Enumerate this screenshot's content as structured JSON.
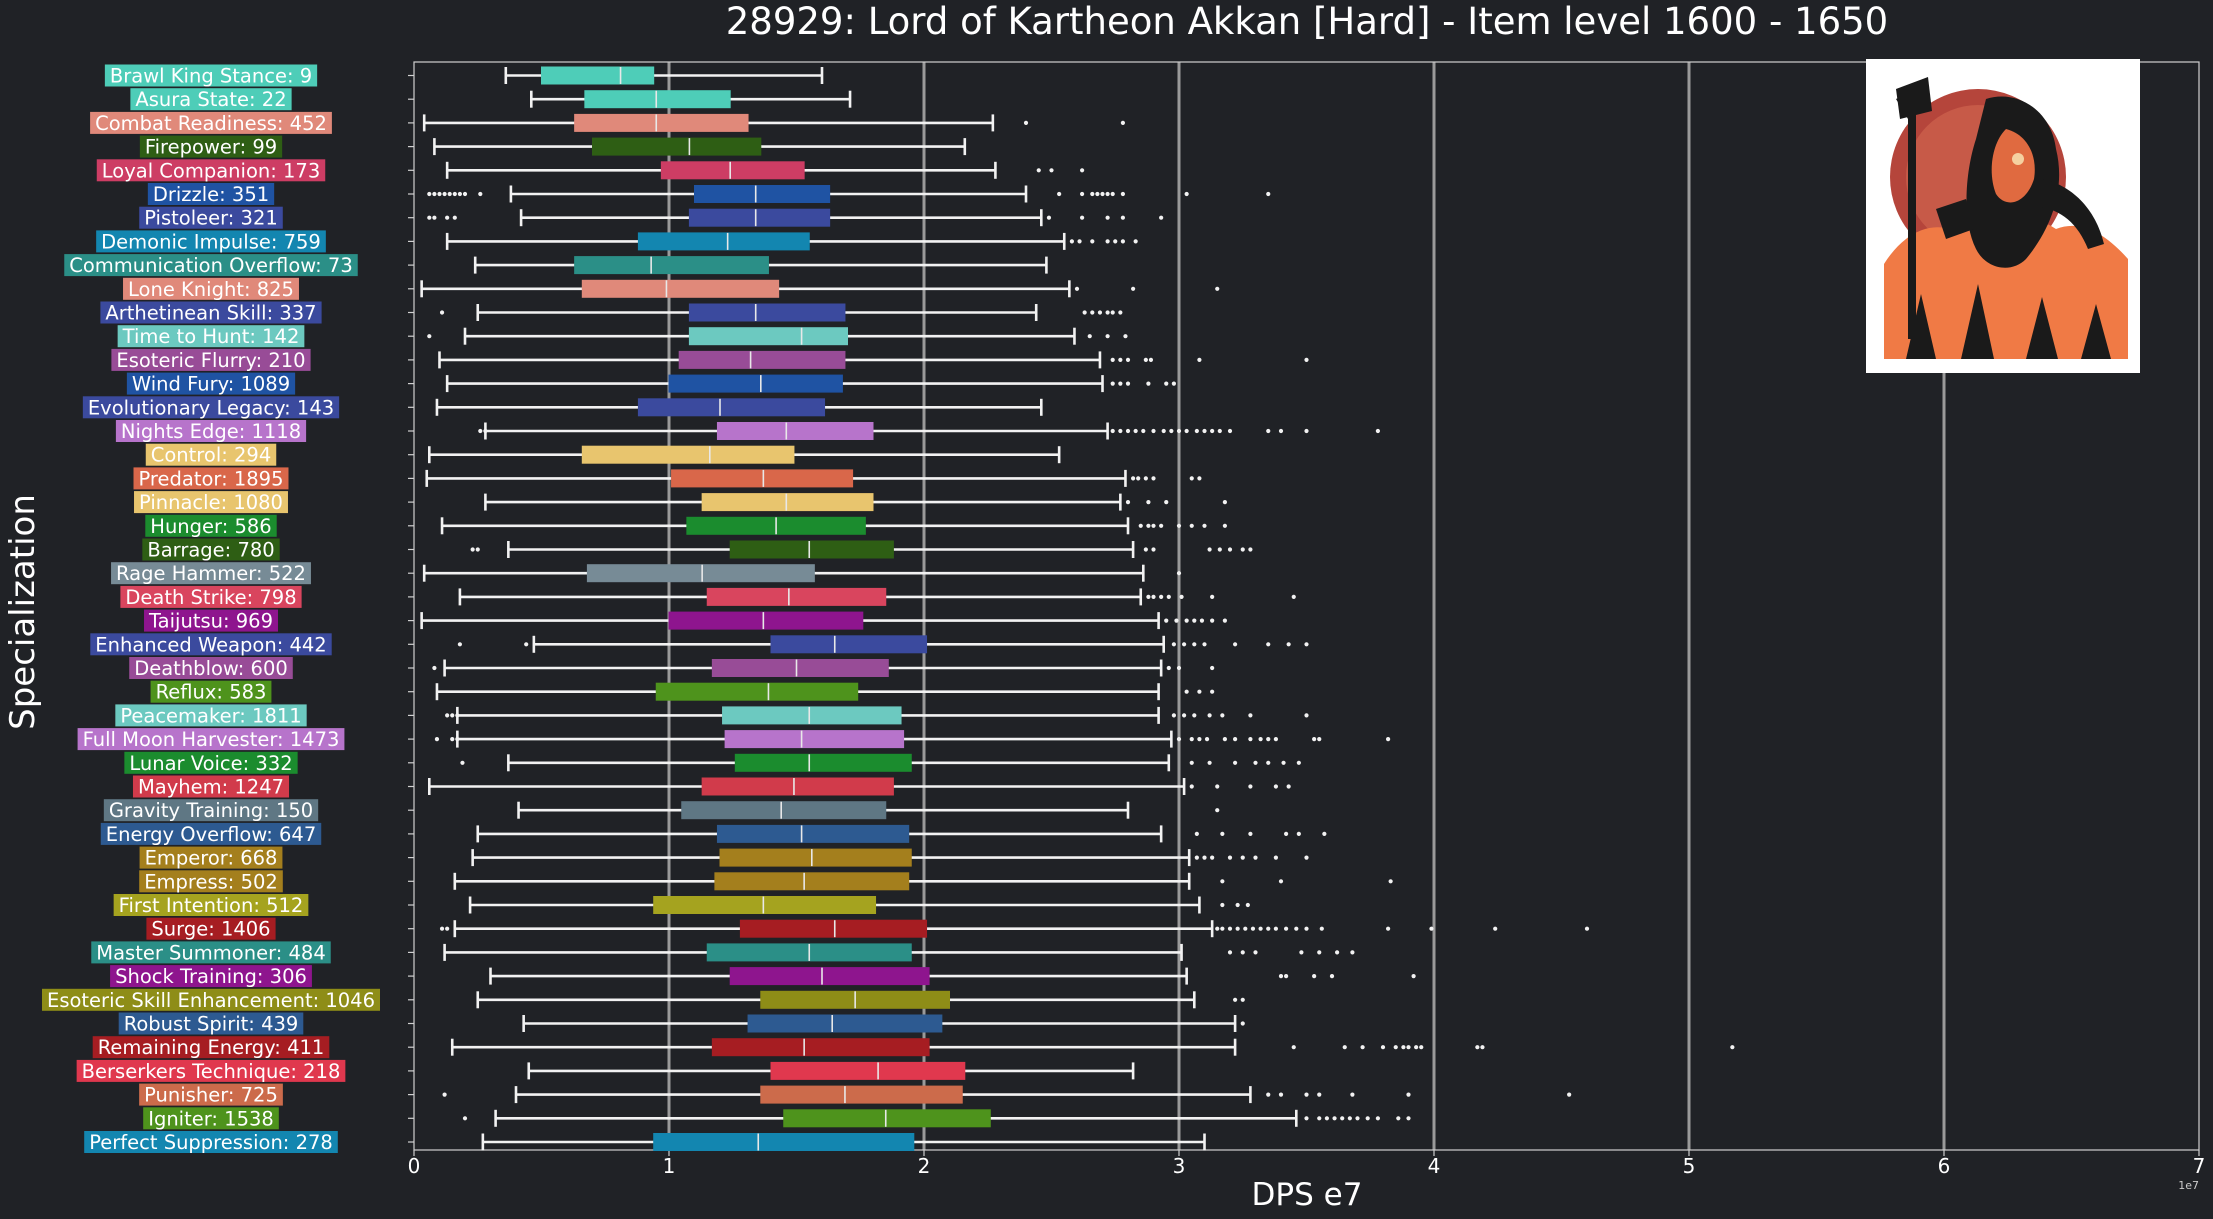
{
  "chart_data": {
    "type": "boxplot",
    "title": "28929: Lord of Kartheon Akkan [Hard] - Item level 1600 - 1650",
    "xlabel": "DPS e7",
    "ylabel": "Specialization",
    "x_offset_label": "1e7",
    "xlim": [
      0,
      7
    ],
    "xticks": [
      0,
      1,
      2,
      3,
      4,
      5,
      6,
      7
    ],
    "x_grid": "vertical",
    "categories": [
      {
        "label": "Brawl King Stance: 9",
        "color": "#4ecdb8",
        "whislo": 0.36,
        "q1": 0.5,
        "med": 0.81,
        "q3": 0.94,
        "whishi": 1.6,
        "fliers": []
      },
      {
        "label": "Asura State: 22",
        "color": "#4ecdb8",
        "whislo": 0.46,
        "q1": 0.67,
        "med": 0.95,
        "q3": 1.24,
        "whishi": 1.71,
        "fliers": []
      },
      {
        "label": "Combat Readiness: 452",
        "color": "#e0897a",
        "whislo": 0.04,
        "q1": 0.63,
        "med": 0.95,
        "q3": 1.31,
        "whishi": 2.27,
        "fliers": [
          2.4,
          2.78
        ]
      },
      {
        "label": "Firepower: 99",
        "color": "#2e5e14",
        "whislo": 0.08,
        "q1": 0.7,
        "med": 1.08,
        "q3": 1.36,
        "whishi": 2.16,
        "fliers": []
      },
      {
        "label": "Loyal Companion: 173",
        "color": "#cd3d64",
        "whislo": 0.13,
        "q1": 0.97,
        "med": 1.24,
        "q3": 1.53,
        "whishi": 2.28,
        "fliers": [
          2.45,
          2.5,
          2.62
        ]
      },
      {
        "label": "Drizzle: 351",
        "color": "#1f53a3",
        "whislo": 0.38,
        "q1": 1.1,
        "med": 1.34,
        "q3": 1.63,
        "whishi": 2.4,
        "fliers": [
          0.06,
          0.08,
          0.1,
          0.12,
          0.14,
          0.16,
          0.18,
          0.2,
          0.26,
          2.53,
          2.62,
          2.66,
          2.68,
          2.7,
          2.72,
          2.74,
          2.78,
          3.03,
          3.35
        ]
      },
      {
        "label": "Pistoleer: 321",
        "color": "#3b4a9e",
        "whislo": 0.42,
        "q1": 1.08,
        "med": 1.34,
        "q3": 1.63,
        "whishi": 2.46,
        "fliers": [
          0.06,
          0.08,
          0.13,
          0.16,
          2.49,
          2.62,
          2.72,
          2.78,
          2.93
        ]
      },
      {
        "label": "Demonic Impulse: 759",
        "color": "#1386b0",
        "whislo": 0.13,
        "q1": 0.88,
        "med": 1.23,
        "q3": 1.55,
        "whishi": 2.55,
        "fliers": [
          2.58,
          2.61,
          2.66,
          2.72,
          2.75,
          2.78,
          2.83
        ]
      },
      {
        "label": "Communication Overflow: 73",
        "color": "#2b8f87",
        "whislo": 0.24,
        "q1": 0.63,
        "med": 0.93,
        "q3": 1.39,
        "whishi": 2.48,
        "fliers": []
      },
      {
        "label": "Lone Knight: 825",
        "color": "#e0897a",
        "whislo": 0.03,
        "q1": 0.66,
        "med": 0.99,
        "q3": 1.43,
        "whishi": 2.57,
        "fliers": [
          2.6,
          2.82,
          3.15
        ]
      },
      {
        "label": "Arthetinean Skill: 337",
        "color": "#3b4a9e",
        "whislo": 0.25,
        "q1": 1.08,
        "med": 1.34,
        "q3": 1.69,
        "whishi": 2.44,
        "fliers": [
          0.11,
          2.63,
          2.66,
          2.69,
          2.72,
          2.74,
          2.77
        ]
      },
      {
        "label": "Time to Hunt: 142",
        "color": "#6cc9c0",
        "whislo": 0.2,
        "q1": 1.08,
        "med": 1.52,
        "q3": 1.7,
        "whishi": 2.59,
        "fliers": [
          0.06,
          2.65,
          2.72,
          2.79
        ]
      },
      {
        "label": "Esoteric Flurry: 210",
        "color": "#984c97",
        "whislo": 0.1,
        "q1": 1.04,
        "med": 1.32,
        "q3": 1.69,
        "whishi": 2.69,
        "fliers": [
          2.74,
          2.77,
          2.8,
          2.87,
          2.89,
          3.08,
          3.5
        ]
      },
      {
        "label": "Wind Fury: 1089",
        "color": "#1f53a3",
        "whislo": 0.13,
        "q1": 1.0,
        "med": 1.36,
        "q3": 1.68,
        "whishi": 2.7,
        "fliers": [
          2.74,
          2.77,
          2.8,
          2.88,
          2.95,
          2.98
        ]
      },
      {
        "label": "Evolutionary Legacy: 143",
        "color": "#3b4a9e",
        "whislo": 0.09,
        "q1": 0.88,
        "med": 1.2,
        "q3": 1.61,
        "whishi": 2.46,
        "fliers": []
      },
      {
        "label": "Nights Edge: 1118",
        "color": "#b774cb",
        "whislo": 0.28,
        "q1": 1.19,
        "med": 1.46,
        "q3": 1.8,
        "whishi": 2.72,
        "fliers": [
          0.26,
          0.28,
          2.74,
          2.77,
          2.8,
          2.83,
          2.86,
          2.9,
          2.94,
          2.97,
          3.0,
          3.03,
          3.07,
          3.1,
          3.13,
          3.16,
          3.2,
          3.35,
          3.4,
          3.5,
          3.78
        ]
      },
      {
        "label": "Control: 294",
        "color": "#e8c56e",
        "whislo": 0.06,
        "q1": 0.66,
        "med": 1.16,
        "q3": 1.49,
        "whishi": 2.53,
        "fliers": []
      },
      {
        "label": "Predator: 1895",
        "color": "#d9674a",
        "whislo": 0.05,
        "q1": 1.01,
        "med": 1.37,
        "q3": 1.72,
        "whishi": 2.79,
        "fliers": [
          2.82,
          2.84,
          2.87,
          2.9,
          3.05,
          3.08
        ]
      },
      {
        "label": "Pinnacle: 1080",
        "color": "#e8c56e",
        "whislo": 0.28,
        "q1": 1.13,
        "med": 1.46,
        "q3": 1.8,
        "whishi": 2.77,
        "fliers": [
          2.8,
          2.88,
          2.95,
          3.18
        ]
      },
      {
        "label": "Hunger: 586",
        "color": "#1b8c2e",
        "whislo": 0.11,
        "q1": 1.07,
        "med": 1.42,
        "q3": 1.77,
        "whishi": 2.8,
        "fliers": [
          2.85,
          2.88,
          2.9,
          2.93,
          3.0,
          3.05,
          3.1,
          3.18
        ]
      },
      {
        "label": "Barrage: 780",
        "color": "#2e5e14",
        "whislo": 0.37,
        "q1": 1.24,
        "med": 1.55,
        "q3": 1.88,
        "whishi": 2.82,
        "fliers": [
          0.23,
          0.25,
          2.87,
          2.9,
          3.12,
          3.16,
          3.2,
          3.25,
          3.28
        ]
      },
      {
        "label": "Rage Hammer: 522",
        "color": "#778b96",
        "whislo": 0.04,
        "q1": 0.68,
        "med": 1.13,
        "q3": 1.57,
        "whishi": 2.86,
        "fliers": [
          3.0
        ]
      },
      {
        "label": "Death Strike: 798",
        "color": "#d9455e",
        "whislo": 0.18,
        "q1": 1.15,
        "med": 1.47,
        "q3": 1.85,
        "whishi": 2.85,
        "fliers": [
          2.88,
          2.9,
          2.93,
          2.96,
          3.01,
          3.13,
          3.45
        ]
      },
      {
        "label": "Taijutsu: 969",
        "color": "#8e158e",
        "whislo": 0.03,
        "q1": 1.0,
        "med": 1.37,
        "q3": 1.76,
        "whishi": 2.92,
        "fliers": [
          2.95,
          2.99,
          3.03,
          3.06,
          3.09,
          3.13,
          3.18
        ]
      },
      {
        "label": "Enhanced Weapon: 442",
        "color": "#3b4a9e",
        "whislo": 0.47,
        "q1": 1.4,
        "med": 1.65,
        "q3": 2.01,
        "whishi": 2.94,
        "fliers": [
          0.18,
          0.44,
          2.98,
          3.02,
          3.06,
          3.1,
          3.22,
          3.35,
          3.43,
          3.5
        ]
      },
      {
        "label": "Deathblow: 600",
        "color": "#984c97",
        "whislo": 0.12,
        "q1": 1.17,
        "med": 1.5,
        "q3": 1.86,
        "whishi": 2.93,
        "fliers": [
          0.08,
          2.96,
          3.0,
          3.13
        ]
      },
      {
        "label": "Reflux: 583",
        "color": "#4e931c",
        "whislo": 0.09,
        "q1": 0.95,
        "med": 1.39,
        "q3": 1.74,
        "whishi": 2.92,
        "fliers": [
          3.03,
          3.08,
          3.13
        ]
      },
      {
        "label": "Peacemaker: 1811",
        "color": "#6cc9c0",
        "whislo": 0.17,
        "q1": 1.21,
        "med": 1.55,
        "q3": 1.91,
        "whishi": 2.92,
        "fliers": [
          0.13,
          0.15,
          0.17,
          2.98,
          3.02,
          3.06,
          3.12,
          3.17,
          3.28,
          3.5
        ]
      },
      {
        "label": "Full Moon Harvester: 1473",
        "color": "#b774cb",
        "whislo": 0.17,
        "q1": 1.22,
        "med": 1.52,
        "q3": 1.92,
        "whishi": 2.97,
        "fliers": [
          0.09,
          0.15,
          0.17,
          3.0,
          3.05,
          3.08,
          3.11,
          3.18,
          3.22,
          3.28,
          3.32,
          3.35,
          3.38,
          3.53,
          3.55,
          3.82
        ]
      },
      {
        "label": "Lunar Voice: 332",
        "color": "#1b8c2e",
        "whislo": 0.37,
        "q1": 1.26,
        "med": 1.55,
        "q3": 1.95,
        "whishi": 2.96,
        "fliers": [
          0.19,
          3.05,
          3.12,
          3.22,
          3.3,
          3.35,
          3.41,
          3.47
        ]
      },
      {
        "label": "Mayhem: 1247",
        "color": "#d13b4b",
        "whislo": 0.06,
        "q1": 1.13,
        "med": 1.49,
        "q3": 1.88,
        "whishi": 3.02,
        "fliers": [
          3.05,
          3.15,
          3.28,
          3.38,
          3.43
        ]
      },
      {
        "label": "Gravity Training: 150",
        "color": "#5f7784",
        "whislo": 0.41,
        "q1": 1.05,
        "med": 1.44,
        "q3": 1.85,
        "whishi": 2.8,
        "fliers": [
          3.15
        ]
      },
      {
        "label": "Energy Overflow: 647",
        "color": "#2d5a91",
        "whislo": 0.25,
        "q1": 1.19,
        "med": 1.52,
        "q3": 1.94,
        "whishi": 2.93,
        "fliers": [
          3.07,
          3.17,
          3.28,
          3.42,
          3.47,
          3.57
        ]
      },
      {
        "label": "Emperor: 668",
        "color": "#a47f1d",
        "whislo": 0.23,
        "q1": 1.2,
        "med": 1.56,
        "q3": 1.95,
        "whishi": 3.04,
        "fliers": [
          3.07,
          3.1,
          3.13,
          3.2,
          3.25,
          3.3,
          3.38,
          3.5
        ]
      },
      {
        "label": "Empress: 502",
        "color": "#a47f1d",
        "whislo": 0.16,
        "q1": 1.18,
        "med": 1.53,
        "q3": 1.94,
        "whishi": 3.04,
        "fliers": [
          3.17,
          3.4,
          3.83
        ]
      },
      {
        "label": "First Intention: 512",
        "color": "#a5a31f",
        "whislo": 0.22,
        "q1": 0.94,
        "med": 1.37,
        "q3": 1.81,
        "whishi": 3.08,
        "fliers": [
          3.17,
          3.23,
          3.27
        ]
      },
      {
        "label": "Surge: 1406",
        "color": "#a61d22",
        "whislo": 0.16,
        "q1": 1.28,
        "med": 1.65,
        "q3": 2.01,
        "whishi": 3.13,
        "fliers": [
          0.11,
          0.13,
          3.15,
          3.17,
          3.2,
          3.23,
          3.26,
          3.29,
          3.32,
          3.35,
          3.38,
          3.42,
          3.46,
          3.5,
          3.56,
          3.82,
          3.99,
          4.24,
          4.6
        ]
      },
      {
        "label": "Master Summoner: 484",
        "color": "#2b8f87",
        "whislo": 0.12,
        "q1": 1.15,
        "med": 1.55,
        "q3": 1.95,
        "whishi": 3.01,
        "fliers": [
          3.2,
          3.25,
          3.3,
          3.48,
          3.55,
          3.62,
          3.68
        ]
      },
      {
        "label": "Shock Training: 306",
        "color": "#8e158e",
        "whislo": 0.3,
        "q1": 1.24,
        "med": 1.6,
        "q3": 2.02,
        "whishi": 3.03,
        "fliers": [
          3.4,
          3.42,
          3.53,
          3.6,
          3.92
        ]
      },
      {
        "label": "Esoteric Skill Enhancement: 1046",
        "color": "#8e8d17",
        "whislo": 0.25,
        "q1": 1.36,
        "med": 1.73,
        "q3": 2.1,
        "whishi": 3.06,
        "fliers": [
          3.22,
          3.25
        ]
      },
      {
        "label": "Robust Spirit: 439",
        "color": "#2d5a91",
        "whislo": 0.43,
        "q1": 1.31,
        "med": 1.64,
        "q3": 2.07,
        "whishi": 3.22,
        "fliers": [
          3.25
        ]
      },
      {
        "label": "Remaining Energy: 411",
        "color": "#a61d22",
        "whislo": 0.15,
        "q1": 1.17,
        "med": 1.53,
        "q3": 2.02,
        "whishi": 3.22,
        "fliers": [
          3.45,
          3.65,
          3.72,
          3.8,
          3.85,
          3.88,
          3.9,
          3.93,
          3.95,
          4.17,
          4.19,
          5.17
        ]
      },
      {
        "label": "Berserkers Technique: 218",
        "color": "#e0384e",
        "whislo": 0.45,
        "q1": 1.4,
        "med": 1.82,
        "q3": 2.16,
        "whishi": 2.82,
        "fliers": []
      },
      {
        "label": "Punisher: 725",
        "color": "#cc6b4b",
        "whislo": 0.4,
        "q1": 1.36,
        "med": 1.69,
        "q3": 2.15,
        "whishi": 3.28,
        "fliers": [
          0.12,
          3.35,
          3.4,
          3.5,
          3.55,
          3.68,
          3.9,
          4.53
        ]
      },
      {
        "label": "Igniter: 1538",
        "color": "#4e931c",
        "whislo": 0.32,
        "q1": 1.45,
        "med": 1.85,
        "q3": 2.26,
        "whishi": 3.46,
        "fliers": [
          0.2,
          3.5,
          3.55,
          3.58,
          3.61,
          3.64,
          3.67,
          3.7,
          3.74,
          3.78,
          3.86,
          3.9
        ]
      },
      {
        "label": "Perfect Suppression: 278",
        "color": "#1386b0",
        "whislo": 0.27,
        "q1": 0.94,
        "med": 1.35,
        "q3": 1.96,
        "whishi": 3.1,
        "fliers": []
      }
    ]
  }
}
